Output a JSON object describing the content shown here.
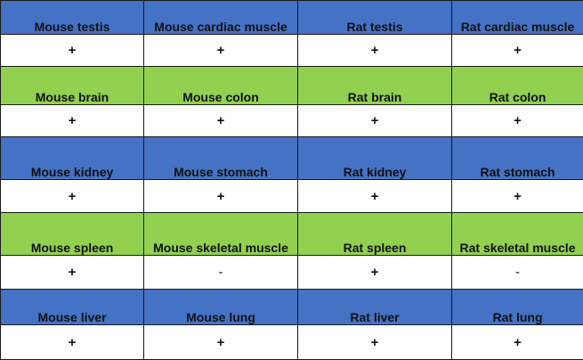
{
  "colors": {
    "blue_band": "#4472c4",
    "green_band": "#92d050",
    "value_row": "#ffffff"
  },
  "rows": [
    {
      "band": "blue",
      "tissues": [
        "Mouse testis",
        "Mouse cardiac muscle",
        "Rat testis",
        "Rat cardiac muscle"
      ],
      "results": [
        "+",
        "+",
        "+",
        "+"
      ]
    },
    {
      "band": "green",
      "tissues": [
        "Mouse brain",
        "Mouse colon",
        "Rat brain",
        "Rat colon"
      ],
      "results": [
        "+",
        "+",
        "+",
        "+"
      ]
    },
    {
      "band": "blue",
      "tissues": [
        "Mouse kidney",
        "Mouse stomach",
        "Rat kidney",
        "Rat stomach"
      ],
      "results": [
        "+",
        "+",
        "+",
        "+"
      ]
    },
    {
      "band": "green",
      "tissues": [
        "Mouse spleen",
        "Mouse skeletal muscle",
        "Rat spleen",
        "Rat skeletal muscle"
      ],
      "results": [
        "+",
        "-",
        "+",
        "-"
      ]
    },
    {
      "band": "blue",
      "tissues": [
        "Mouse liver",
        "Mouse lung",
        "Rat liver",
        "Rat lung"
      ],
      "results": [
        "+",
        "+",
        "+",
        "+"
      ]
    }
  ]
}
